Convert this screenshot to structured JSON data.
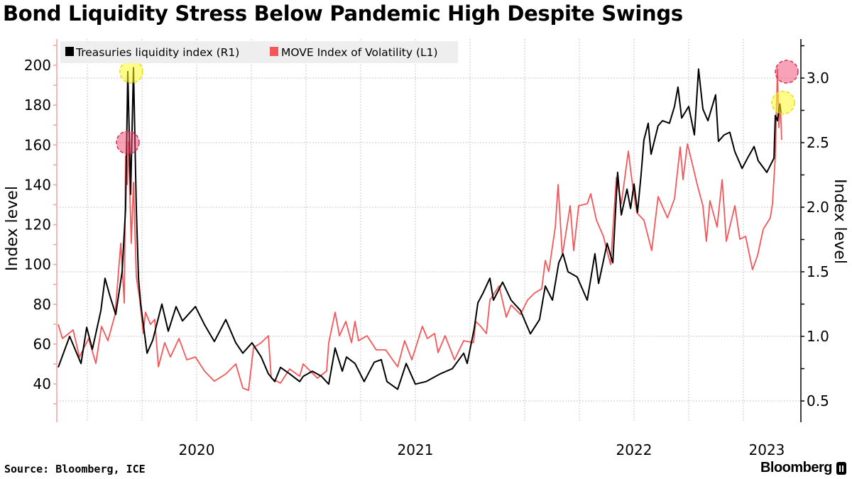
{
  "title": "Bond Liquidity Stress Below Pandemic High Despite Swings",
  "source": "Source: Bloomberg, ICE",
  "brand": "Bloomberg",
  "chart_data": {
    "type": "line",
    "title": "Bond Liquidity Stress Below Pandemic High Despite Swings",
    "ylabel_left": "Index level",
    "ylabel_right": "Index level",
    "x_range": [
      2019.867,
      2023.26
    ],
    "ylim_left": [
      29,
      213
    ],
    "ylim_right": [
      0.34,
      3.3
    ],
    "left_ticks": [
      "40",
      "60",
      "80",
      "100",
      "120",
      "140",
      "160",
      "180",
      "200"
    ],
    "right_ticks": [
      "0.5",
      "1.0",
      "1.5",
      "2.0",
      "2.5",
      "3.0"
    ],
    "x_tick_labels": [
      {
        "label": "2020",
        "t": 2020.5
      },
      {
        "label": "2021",
        "t": 2021.5
      },
      {
        "label": "2022",
        "t": 2022.5
      },
      {
        "label": "2023",
        "t": 2023.107
      }
    ],
    "grid": true,
    "legend_position": "top-left",
    "colors": {
      "liquidity": "#000000",
      "move": "#f4575a",
      "left_axis": "#f4a0a2",
      "legend_bg": "#eeeeee"
    },
    "series": [
      {
        "name": "Treasuries liquidity index (R1)",
        "axis": "right",
        "color": "#000000",
        "points": [
          [
            2019.867,
            0.76
          ],
          [
            2019.919,
            1.0
          ],
          [
            2019.971,
            0.79
          ],
          [
            2019.997,
            1.07
          ],
          [
            2020.023,
            0.9
          ],
          [
            2020.062,
            1.2
          ],
          [
            2020.081,
            1.45
          ],
          [
            2020.104,
            1.31
          ],
          [
            2020.13,
            1.17
          ],
          [
            2020.159,
            1.5
          ],
          [
            2020.175,
            1.99
          ],
          [
            2020.185,
            3.05
          ],
          [
            2020.198,
            2.1
          ],
          [
            2020.211,
            3.08
          ],
          [
            2020.224,
            1.99
          ],
          [
            2020.234,
            1.45
          ],
          [
            2020.244,
            1.25
          ],
          [
            2020.273,
            0.87
          ],
          [
            2020.299,
            0.97
          ],
          [
            2020.341,
            1.25
          ],
          [
            2020.37,
            1.04
          ],
          [
            2020.406,
            1.23
          ],
          [
            2020.435,
            1.12
          ],
          [
            2020.494,
            1.23
          ],
          [
            2020.536,
            1.09
          ],
          [
            2020.581,
            0.96
          ],
          [
            2020.633,
            1.13
          ],
          [
            2020.679,
            0.95
          ],
          [
            2020.711,
            0.87
          ],
          [
            2020.753,
            0.95
          ],
          [
            2020.795,
            0.84
          ],
          [
            2020.828,
            0.71
          ],
          [
            2020.857,
            0.65
          ],
          [
            2020.883,
            0.76
          ],
          [
            2020.925,
            0.71
          ],
          [
            2020.971,
            0.65
          ],
          [
            2020.987,
            0.69
          ],
          [
            2021.029,
            0.73
          ],
          [
            2021.071,
            0.69
          ],
          [
            2021.104,
            0.63
          ],
          [
            2021.133,
            0.91
          ],
          [
            2021.166,
            0.73
          ],
          [
            2021.185,
            0.84
          ],
          [
            2021.224,
            0.79
          ],
          [
            2021.266,
            0.65
          ],
          [
            2021.312,
            0.8
          ],
          [
            2021.344,
            0.82
          ],
          [
            2021.37,
            0.65
          ],
          [
            2021.419,
            0.59
          ],
          [
            2021.458,
            0.79
          ],
          [
            2021.5,
            0.63
          ],
          [
            2021.549,
            0.65
          ],
          [
            2021.614,
            0.71
          ],
          [
            2021.669,
            0.75
          ],
          [
            2021.721,
            0.87
          ],
          [
            2021.737,
            0.79
          ],
          [
            2021.769,
            1.06
          ],
          [
            2021.786,
            1.26
          ],
          [
            2021.808,
            1.33
          ],
          [
            2021.841,
            1.45
          ],
          [
            2021.857,
            1.28
          ],
          [
            2021.899,
            1.42
          ],
          [
            2021.938,
            1.28
          ],
          [
            2021.981,
            1.2
          ],
          [
            2022.026,
            1.02
          ],
          [
            2022.068,
            1.13
          ],
          [
            2022.094,
            1.39
          ],
          [
            2022.127,
            1.28
          ],
          [
            2022.156,
            1.57
          ],
          [
            2022.175,
            1.64
          ],
          [
            2022.198,
            1.5
          ],
          [
            2022.24,
            1.46
          ],
          [
            2022.286,
            1.28
          ],
          [
            2022.321,
            1.64
          ],
          [
            2022.338,
            1.41
          ],
          [
            2022.377,
            1.72
          ],
          [
            2022.403,
            1.57
          ],
          [
            2022.425,
            2.27
          ],
          [
            2022.442,
            1.94
          ],
          [
            2022.468,
            2.14
          ],
          [
            2022.484,
            1.99
          ],
          [
            2022.5,
            2.18
          ],
          [
            2022.516,
            1.96
          ],
          [
            2022.532,
            2.25
          ],
          [
            2022.545,
            2.52
          ],
          [
            2022.565,
            2.65
          ],
          [
            2022.578,
            2.41
          ],
          [
            2022.61,
            2.63
          ],
          [
            2022.63,
            2.67
          ],
          [
            2022.662,
            2.65
          ],
          [
            2022.685,
            2.78
          ],
          [
            2022.701,
            2.93
          ],
          [
            2022.718,
            2.69
          ],
          [
            2022.75,
            2.78
          ],
          [
            2022.776,
            2.56
          ],
          [
            2022.795,
            3.07
          ],
          [
            2022.815,
            2.76
          ],
          [
            2022.838,
            2.67
          ],
          [
            2022.873,
            2.87
          ],
          [
            2022.886,
            2.51
          ],
          [
            2022.912,
            2.56
          ],
          [
            2022.938,
            2.58
          ],
          [
            2022.961,
            2.43
          ],
          [
            2022.994,
            2.3
          ],
          [
            2023.019,
            2.38
          ],
          [
            2023.049,
            2.47
          ],
          [
            2023.068,
            2.36
          ],
          [
            2023.107,
            2.27
          ],
          [
            2023.14,
            2.38
          ],
          [
            2023.146,
            2.71
          ],
          [
            2023.156,
            2.67
          ],
          [
            2023.166,
            2.8
          ],
          [
            2023.172,
            2.73
          ]
        ]
      },
      {
        "name": "MOVE Index of Volatility (L1)",
        "axis": "left",
        "color": "#f4575a",
        "points": [
          [
            2019.867,
            69.9
          ],
          [
            2019.886,
            62.8
          ],
          [
            2019.935,
            67.1
          ],
          [
            2019.964,
            53.5
          ],
          [
            2020.006,
            62.8
          ],
          [
            2020.039,
            50.3
          ],
          [
            2020.065,
            68.9
          ],
          [
            2020.094,
            61.7
          ],
          [
            2020.127,
            74.9
          ],
          [
            2020.153,
            110.6
          ],
          [
            2020.169,
            80.6
          ],
          [
            2020.175,
            154.4
          ],
          [
            2020.182,
            140.1
          ],
          [
            2020.188,
            161.5
          ],
          [
            2020.201,
            110.6
          ],
          [
            2020.211,
            141.2
          ],
          [
            2020.224,
            93.8
          ],
          [
            2020.24,
            82.1
          ],
          [
            2020.256,
            65.3
          ],
          [
            2020.266,
            76.0
          ],
          [
            2020.289,
            69.9
          ],
          [
            2020.308,
            72.4
          ],
          [
            2020.325,
            48.6
          ],
          [
            2020.354,
            60.7
          ],
          [
            2020.38,
            53.5
          ],
          [
            2020.419,
            62.8
          ],
          [
            2020.455,
            52.1
          ],
          [
            2020.494,
            53.5
          ],
          [
            2020.536,
            46.4
          ],
          [
            2020.581,
            41.4
          ],
          [
            2020.633,
            45.0
          ],
          [
            2020.679,
            50.0
          ],
          [
            2020.711,
            37.9
          ],
          [
            2020.737,
            36.8
          ],
          [
            2020.76,
            58.2
          ],
          [
            2020.795,
            60.7
          ],
          [
            2020.828,
            64.2
          ],
          [
            2020.841,
            42.9
          ],
          [
            2020.883,
            40.4
          ],
          [
            2020.925,
            47.5
          ],
          [
            2020.971,
            43.9
          ],
          [
            2020.987,
            50.0
          ],
          [
            2021.052,
            42.9
          ],
          [
            2021.094,
            46.4
          ],
          [
            2021.104,
            60.7
          ],
          [
            2021.133,
            76.0
          ],
          [
            2021.153,
            64.2
          ],
          [
            2021.182,
            71.4
          ],
          [
            2021.208,
            60.7
          ],
          [
            2021.224,
            71.4
          ],
          [
            2021.24,
            61.7
          ],
          [
            2021.279,
            64.2
          ],
          [
            2021.321,
            57.1
          ],
          [
            2021.364,
            57.1
          ],
          [
            2021.419,
            48.6
          ],
          [
            2021.451,
            61.7
          ],
          [
            2021.484,
            52.1
          ],
          [
            2021.532,
            68.9
          ],
          [
            2021.555,
            62.8
          ],
          [
            2021.588,
            65.3
          ],
          [
            2021.604,
            55.7
          ],
          [
            2021.636,
            64.2
          ],
          [
            2021.679,
            52.1
          ],
          [
            2021.721,
            61.7
          ],
          [
            2021.766,
            60.7
          ],
          [
            2021.776,
            71.4
          ],
          [
            2021.799,
            68.9
          ],
          [
            2021.825,
            65.3
          ],
          [
            2021.841,
            82.1
          ],
          [
            2021.883,
            89.2
          ],
          [
            2021.916,
            73.5
          ],
          [
            2021.938,
            79.6
          ],
          [
            2021.981,
            74.9
          ],
          [
            2022.013,
            82.1
          ],
          [
            2022.045,
            85.6
          ],
          [
            2022.078,
            87.8
          ],
          [
            2022.094,
            102.0
          ],
          [
            2022.11,
            96.3
          ],
          [
            2022.14,
            118.8
          ],
          [
            2022.153,
            140.1
          ],
          [
            2022.172,
            104.5
          ],
          [
            2022.208,
            129.5
          ],
          [
            2022.224,
            107.0
          ],
          [
            2022.247,
            129.5
          ],
          [
            2022.286,
            130.5
          ],
          [
            2022.302,
            135.5
          ],
          [
            2022.328,
            122.3
          ],
          [
            2022.36,
            114.1
          ],
          [
            2022.393,
            99.9
          ],
          [
            2022.419,
            143.7
          ],
          [
            2022.442,
            130.5
          ],
          [
            2022.474,
            156.9
          ],
          [
            2022.49,
            142.6
          ],
          [
            2022.513,
            125.9
          ],
          [
            2022.545,
            122.3
          ],
          [
            2022.581,
            107.0
          ],
          [
            2022.61,
            134.1
          ],
          [
            2022.653,
            123.4
          ],
          [
            2022.685,
            133.0
          ],
          [
            2022.711,
            159.0
          ],
          [
            2022.724,
            142.6
          ],
          [
            2022.744,
            160.5
          ],
          [
            2022.766,
            150.8
          ],
          [
            2022.789,
            140.1
          ],
          [
            2022.815,
            129.5
          ],
          [
            2022.831,
            111.6
          ],
          [
            2022.847,
            132.0
          ],
          [
            2022.88,
            118.8
          ],
          [
            2022.903,
            142.6
          ],
          [
            2022.922,
            111.6
          ],
          [
            2022.961,
            129.5
          ],
          [
            2022.984,
            112.7
          ],
          [
            2023.01,
            114.1
          ],
          [
            2023.042,
            97.4
          ],
          [
            2023.065,
            104.5
          ],
          [
            2023.091,
            117.7
          ],
          [
            2023.123,
            123.4
          ],
          [
            2023.133,
            130.5
          ],
          [
            2023.146,
            154.4
          ],
          [
            2023.156,
            198.2
          ],
          [
            2023.162,
            168.7
          ],
          [
            2023.169,
            180.4
          ],
          [
            2023.175,
            162.6
          ]
        ]
      }
    ],
    "annotations": [
      {
        "kind": "highlight-circle",
        "color": "yellow",
        "series": "Treasuries liquidity index (R1)",
        "axis": "right",
        "t": 2020.201,
        "v": 3.05
      },
      {
        "kind": "highlight-circle",
        "color": "red",
        "series": "MOVE Index of Volatility (L1)",
        "axis": "left",
        "t": 2020.185,
        "v": 161.2
      },
      {
        "kind": "highlight-circle",
        "color": "red",
        "series": "MOVE Index of Volatility (L1)",
        "axis": "left",
        "t": 2023.198,
        "v": 196.8
      },
      {
        "kind": "highlight-circle",
        "color": "yellow",
        "series": "Treasuries liquidity index (R1)",
        "axis": "right",
        "t": 2023.182,
        "v": 2.81
      }
    ]
  }
}
